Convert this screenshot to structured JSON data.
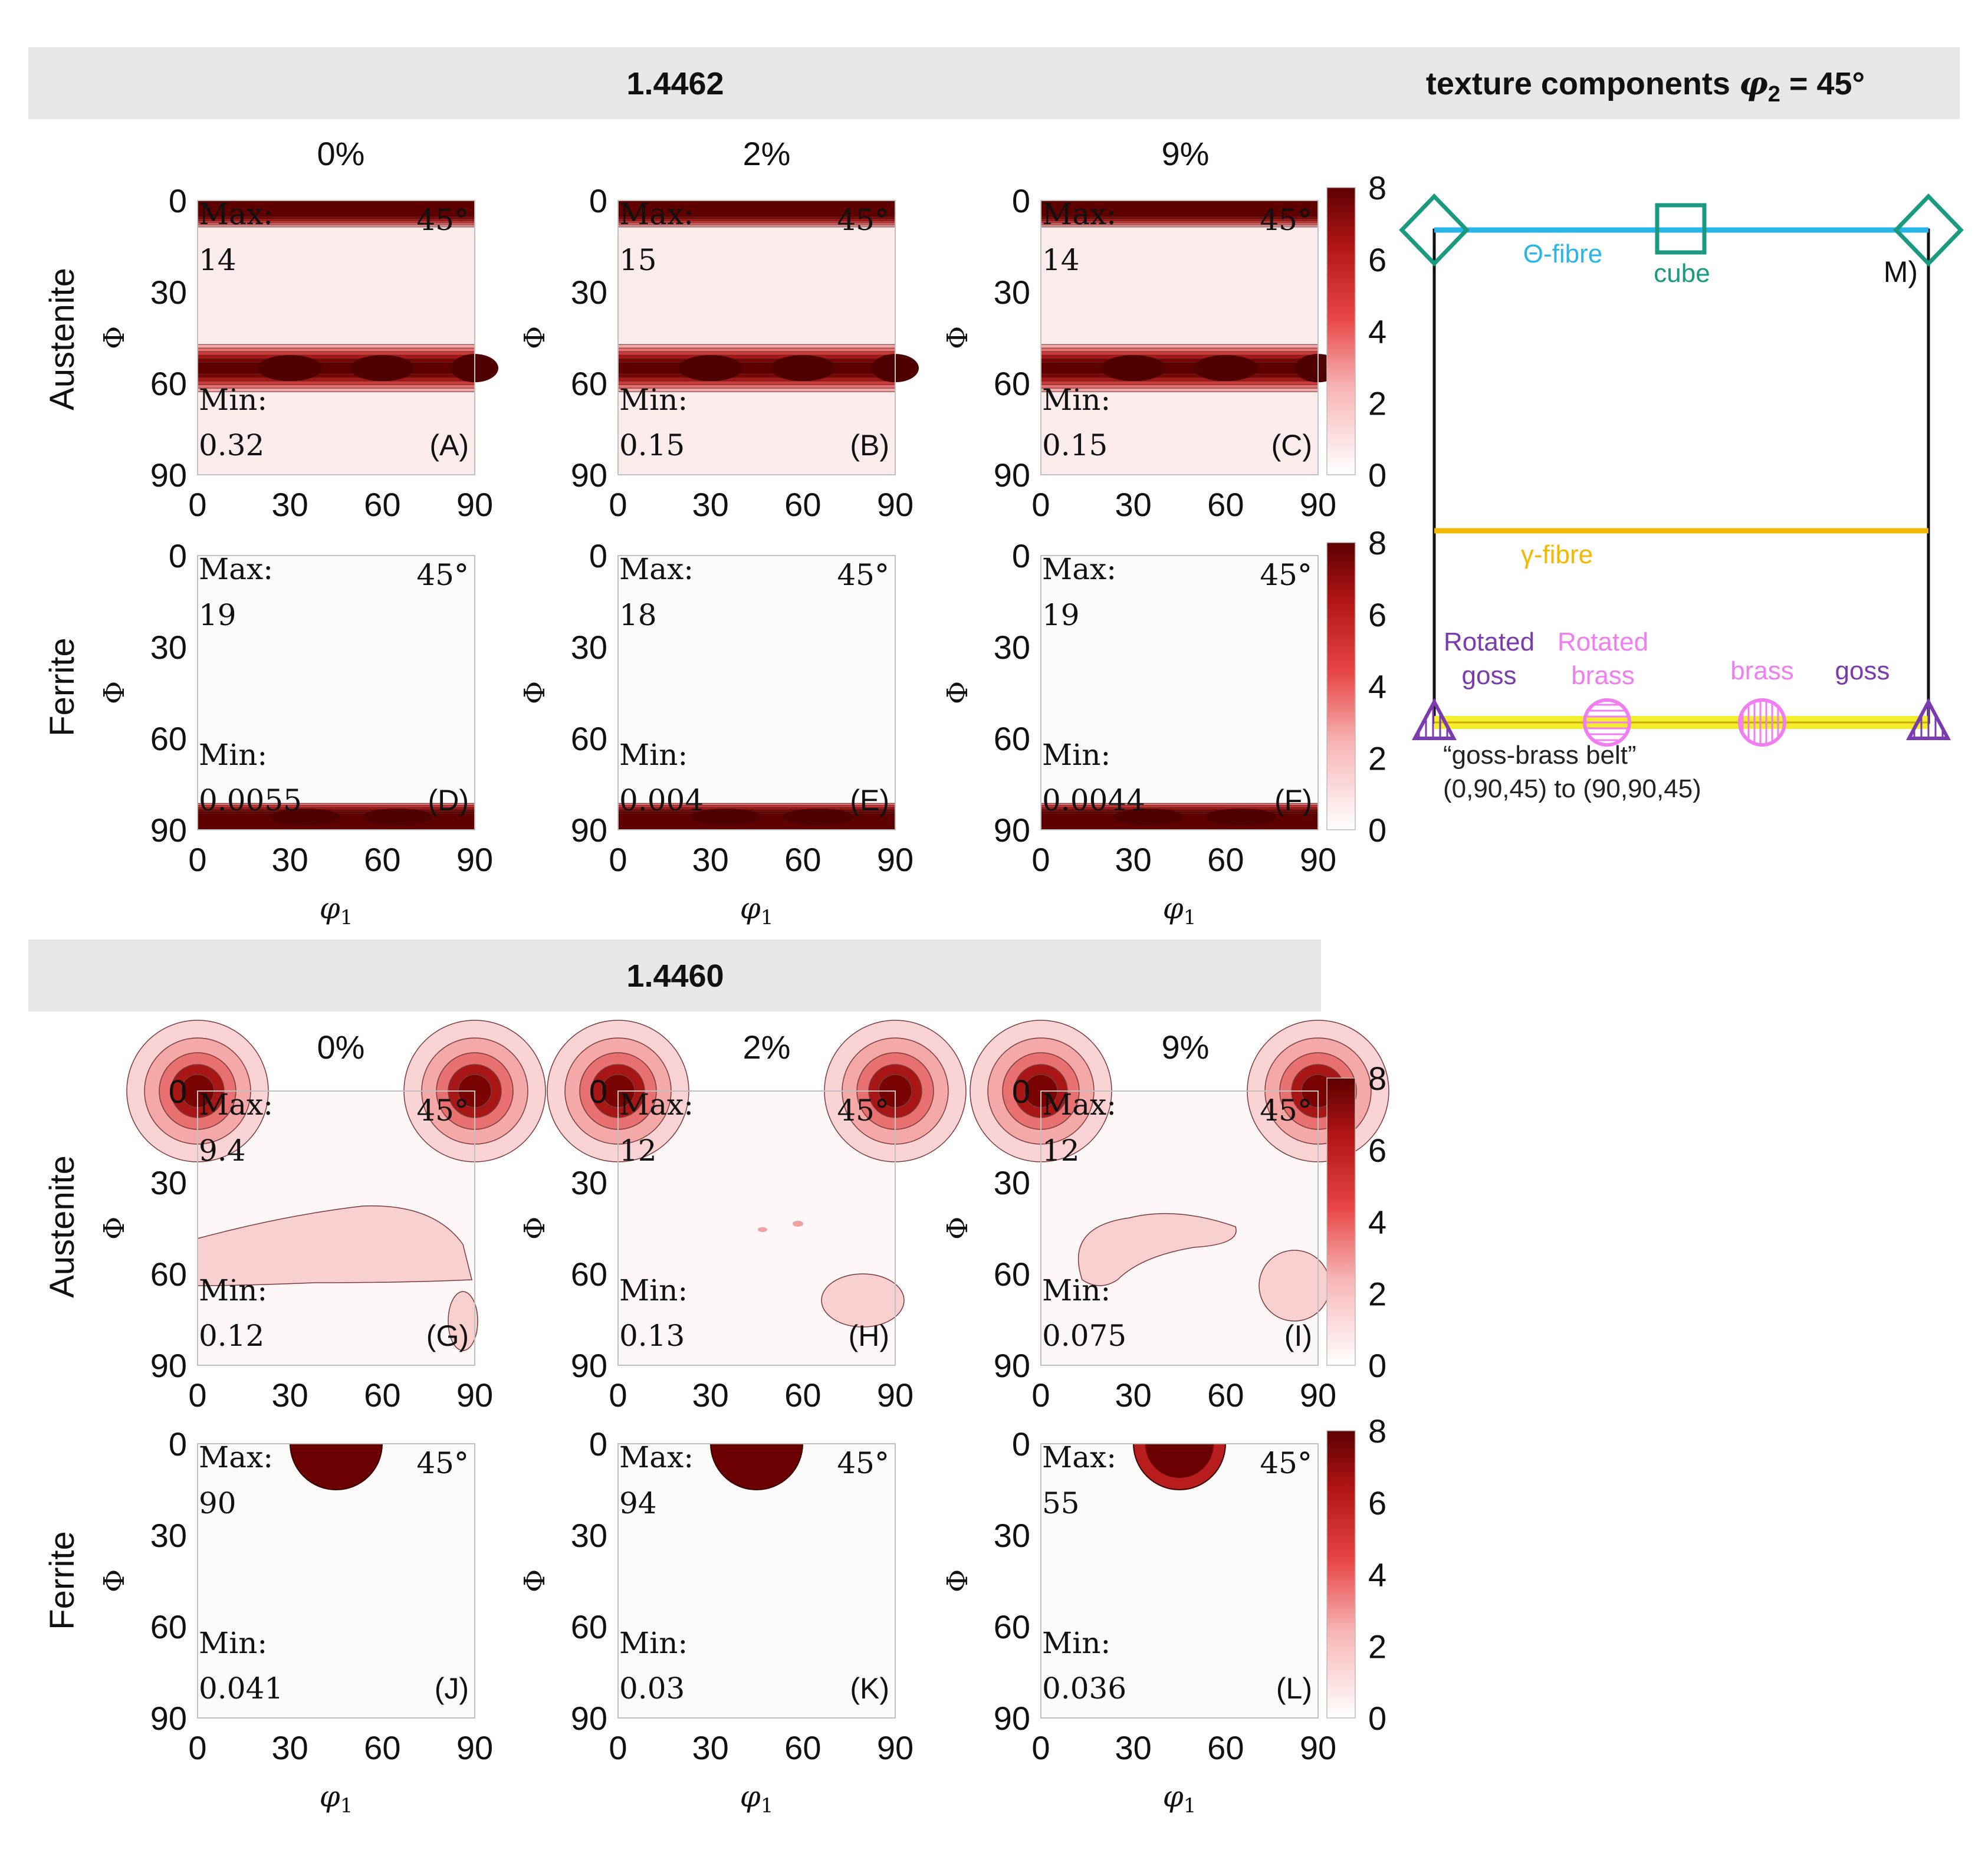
{
  "header_top": {
    "material": "1.4462",
    "components_prefix": "texture components ",
    "components_symbol": "φ",
    "components_sub": "2",
    "components_suffix": " = 45°"
  },
  "header_bottom": {
    "material": "1.4460"
  },
  "column_labels": [
    "0%",
    "2%",
    "9%"
  ],
  "row_labels": {
    "austenite": "Austenite",
    "ferrite": "Ferrite"
  },
  "axis": {
    "ylabel": "Φ",
    "xlabel_symbol": "φ",
    "xlabel_sub": "1",
    "ticks": [
      "0",
      "30",
      "60",
      "90"
    ],
    "angle_tag": "45°",
    "max_label": "Max:",
    "min_label": "Min:"
  },
  "colorbar": {
    "ticks": [
      "0",
      "2",
      "4",
      "6",
      "8"
    ],
    "range": [
      0,
      8
    ],
    "low_color": "#fdf3f3",
    "high_color": "#6b0000"
  },
  "chart_data": {
    "type": "heatmap",
    "x": "φ1 (0–90)",
    "y": "Φ (0–90)",
    "panels": [
      {
        "id": "A",
        "label": "(A)",
        "material": "1.4462",
        "phase": "Austenite",
        "strain": "0%",
        "max": "14",
        "min": "0.32",
        "bands": [
          {
            "phi": 0,
            "level": 7
          },
          {
            "phi": 55,
            "level": 7
          }
        ]
      },
      {
        "id": "B",
        "label": "(B)",
        "material": "1.4462",
        "phase": "Austenite",
        "strain": "2%",
        "max": "15",
        "min": "0.15",
        "bands": [
          {
            "phi": 0,
            "level": 7
          },
          {
            "phi": 55,
            "level": 7
          }
        ]
      },
      {
        "id": "C",
        "label": "(C)",
        "material": "1.4462",
        "phase": "Austenite",
        "strain": "9%",
        "max": "14",
        "min": "0.15",
        "bands": [
          {
            "phi": 0,
            "level": 7
          },
          {
            "phi": 55,
            "level": 7
          }
        ]
      },
      {
        "id": "D",
        "label": "(D)",
        "material": "1.4462",
        "phase": "Ferrite",
        "strain": "0%",
        "max": "19",
        "min": "0.0055",
        "bands": [
          {
            "phi": 90,
            "level": 8
          }
        ]
      },
      {
        "id": "E",
        "label": "(E)",
        "material": "1.4462",
        "phase": "Ferrite",
        "strain": "2%",
        "max": "18",
        "min": "0.004",
        "bands": [
          {
            "phi": 90,
            "level": 8
          }
        ]
      },
      {
        "id": "F",
        "label": "(F)",
        "material": "1.4462",
        "phase": "Ferrite",
        "strain": "9%",
        "max": "19",
        "min": "0.0044",
        "bands": [
          {
            "phi": 90,
            "level": 8
          }
        ]
      },
      {
        "id": "G",
        "label": "(G)",
        "material": "1.4460",
        "phase": "Austenite",
        "strain": "0%",
        "max": "9.4",
        "min": "0.12",
        "peaks": [
          {
            "phi1": 0,
            "phi": 0,
            "level": 8
          },
          {
            "phi1": 90,
            "phi": 0,
            "level": 8
          }
        ]
      },
      {
        "id": "H",
        "label": "(H)",
        "material": "1.4460",
        "phase": "Austenite",
        "strain": "2%",
        "max": "12",
        "min": "0.13",
        "peaks": [
          {
            "phi1": 0,
            "phi": 0,
            "level": 8
          },
          {
            "phi1": 90,
            "phi": 0,
            "level": 8
          }
        ]
      },
      {
        "id": "I",
        "label": "(I)",
        "material": "1.4460",
        "phase": "Austenite",
        "strain": "9%",
        "max": "12",
        "min": "0.075",
        "peaks": [
          {
            "phi1": 0,
            "phi": 0,
            "level": 8
          },
          {
            "phi1": 90,
            "phi": 0,
            "level": 8
          }
        ]
      },
      {
        "id": "J",
        "label": "(J)",
        "material": "1.4460",
        "phase": "Ferrite",
        "strain": "0%",
        "max": "90",
        "min": "0.041",
        "peaks": [
          {
            "phi1": 45,
            "phi": 0,
            "level": 8
          }
        ]
      },
      {
        "id": "K",
        "label": "(K)",
        "material": "1.4460",
        "phase": "Ferrite",
        "strain": "2%",
        "max": "94",
        "min": "0.03",
        "peaks": [
          {
            "phi1": 45,
            "phi": 0,
            "level": 8
          }
        ]
      },
      {
        "id": "L",
        "label": "(L)",
        "material": "1.4460",
        "phase": "Ferrite",
        "strain": "9%",
        "max": "55",
        "min": "0.036",
        "peaks": [
          {
            "phi1": 45,
            "phi": 0,
            "level": 8
          }
        ]
      }
    ]
  },
  "schematic": {
    "panel_label": "M)",
    "theta_fibre": "Θ-fibre",
    "cube": "cube",
    "gamma_fibre": "γ-fibre",
    "rotated_goss_1": "Rotated",
    "rotated_goss_2": "goss",
    "rotated_brass_1": "Rotated",
    "rotated_brass_2": "brass",
    "brass": "brass",
    "goss": "goss",
    "belt_1": "“goss-brass belt”",
    "belt_2": "(0,90,45) to (90,90,45)",
    "colors": {
      "theta": "#29b6e6",
      "cube": "#1a9a80",
      "gamma": "#f5b800",
      "belt": "#f2ee2c",
      "goss": "#7a3bb0",
      "brass": "#f07ef0"
    }
  }
}
